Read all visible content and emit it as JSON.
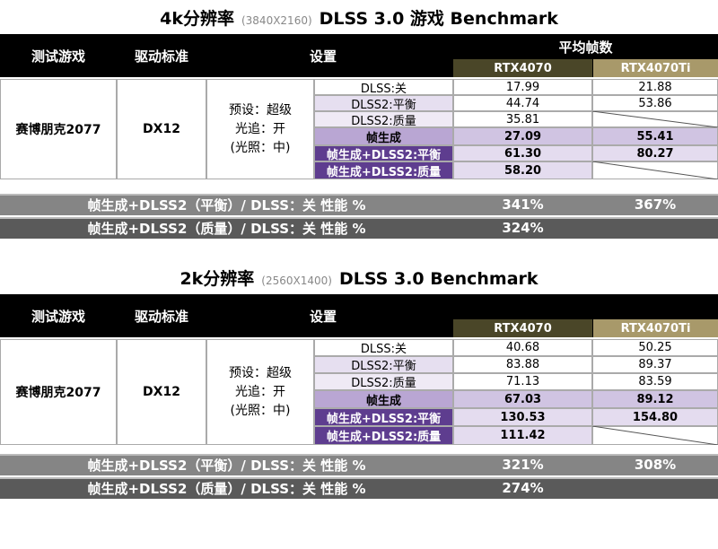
{
  "sections": [
    {
      "title": {
        "main": "4k分辨率",
        "resolution": "(3840X2160)",
        "rest": "DLSS 3.0 游戏 Benchmark"
      },
      "header": {
        "game": "测试游戏",
        "driver": "驱动标准",
        "settings": "设置",
        "average": "平均帧数",
        "gpu1": "RTX4070",
        "gpu2": "RTX4070Ti"
      },
      "game": "赛博朋克2077",
      "driver": "DX12",
      "preset": [
        "预设：超级",
        "光追：开",
        "(光照：中)"
      ],
      "rows": [
        {
          "setting": "DLSS:关",
          "gpu1": "17.99",
          "gpu2": "21.88"
        },
        {
          "setting": "DLSS2:平衡",
          "gpu1": "44.74",
          "gpu2": "53.86"
        },
        {
          "setting": "DLSS2:质量",
          "gpu1": "35.81",
          "gpu2": null
        },
        {
          "setting": "帧生成",
          "gpu1": "27.09",
          "gpu2": "55.41"
        },
        {
          "setting": "帧生成+DLSS2:平衡",
          "gpu1": "61.30",
          "gpu2": "80.27"
        },
        {
          "setting": "帧生成+DLSS2:质量",
          "gpu1": "58.20",
          "gpu2": null
        }
      ],
      "summary": [
        {
          "label": "帧生成+DLSS2（平衡）/ DLSS：关 性能 %",
          "gpu1": "341%",
          "gpu2": "367%"
        },
        {
          "label": "帧生成+DLSS2（质量）/ DLSS：关 性能 %",
          "gpu1": "324%",
          "gpu2": null
        }
      ]
    },
    {
      "title": {
        "main": "2k分辨率",
        "resolution": "(2560X1400)",
        "rest": "DLSS 3.0 Benchmark"
      },
      "header": {
        "game": "测试游戏",
        "driver": "驱动标准",
        "settings": "设置",
        "gpu1": "RTX4070",
        "gpu2": "RTX4070Ti"
      },
      "game": "赛博朋克2077",
      "driver": "DX12",
      "preset": [
        "预设：超级",
        "光追：开",
        "(光照：中)"
      ],
      "rows": [
        {
          "setting": "DLSS:关",
          "gpu1": "40.68",
          "gpu2": "50.25"
        },
        {
          "setting": "DLSS2:平衡",
          "gpu1": "83.88",
          "gpu2": "89.37"
        },
        {
          "setting": "DLSS2:质量",
          "gpu1": "71.13",
          "gpu2": "83.59"
        },
        {
          "setting": "帧生成",
          "gpu1": "67.03",
          "gpu2": "89.12"
        },
        {
          "setting": "帧生成+DLSS2:平衡",
          "gpu1": "130.53",
          "gpu2": "154.80"
        },
        {
          "setting": "帧生成+DLSS2:质量",
          "gpu1": "111.42",
          "gpu2": null
        }
      ],
      "summary": [
        {
          "label": "帧生成+DLSS2（平衡）/ DLSS：关 性能 %",
          "gpu1": "321%",
          "gpu2": "308%"
        },
        {
          "label": "帧生成+DLSS2（质量）/ DLSS：关 性能 %",
          "gpu1": "274%",
          "gpu2": null
        }
      ]
    }
  ]
}
